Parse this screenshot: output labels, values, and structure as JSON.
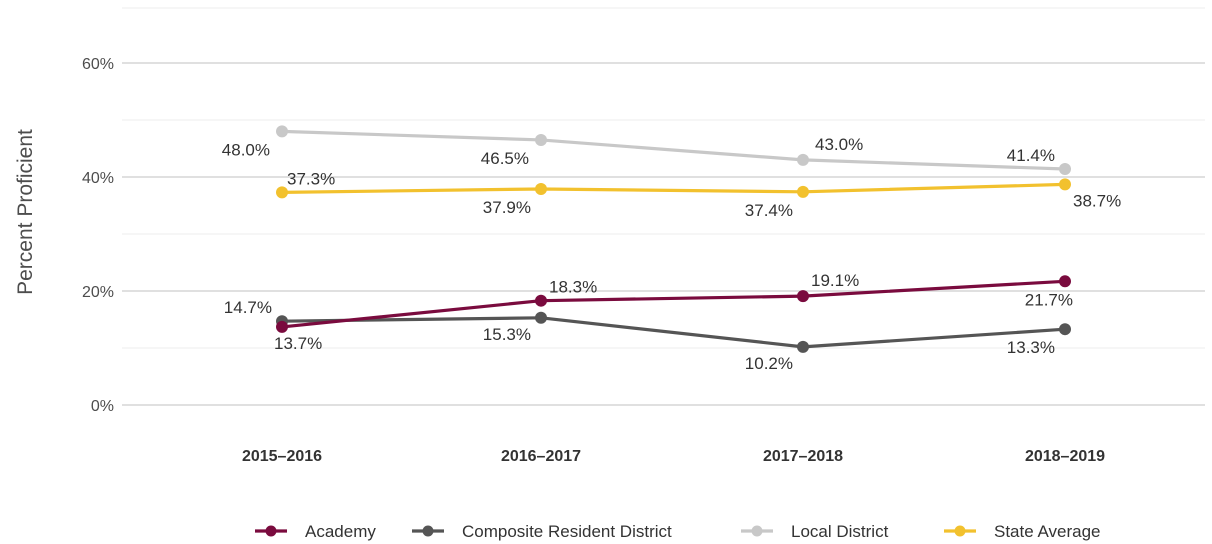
{
  "chart_data": {
    "type": "line",
    "ylabel": "Percent Proficient",
    "ylim": [
      0,
      60
    ],
    "y_ticks": [
      "0%",
      "20%",
      "40%",
      "60%"
    ],
    "y_tick_values": [
      0,
      20,
      40,
      60
    ],
    "categories": [
      "2015–2016",
      "2016–2017",
      "2017–2018",
      "2018–2019"
    ],
    "grid": true,
    "legend_position": "bottom",
    "series": [
      {
        "name": "Academy",
        "color": "#7a0b3e",
        "values": [
          13.7,
          18.3,
          19.1,
          21.7
        ],
        "labels": [
          "13.7%",
          "18.3%",
          "19.1%",
          "21.7%"
        ]
      },
      {
        "name": "Composite Resident District",
        "color": "#555555",
        "values": [
          14.7,
          15.3,
          10.2,
          13.3
        ],
        "labels": [
          "14.7%",
          "15.3%",
          "10.2%",
          "13.3%"
        ]
      },
      {
        "name": "Local District",
        "color": "#c8c8c8",
        "values": [
          48.0,
          46.5,
          43.0,
          41.4
        ],
        "labels": [
          "48.0%",
          "46.5%",
          "43.0%",
          "41.4%"
        ]
      },
      {
        "name": "State Average",
        "color": "#f2c12e",
        "values": [
          37.3,
          37.9,
          37.4,
          38.7
        ],
        "labels": [
          "37.3%",
          "37.9%",
          "37.4%",
          "38.7%"
        ]
      }
    ]
  }
}
